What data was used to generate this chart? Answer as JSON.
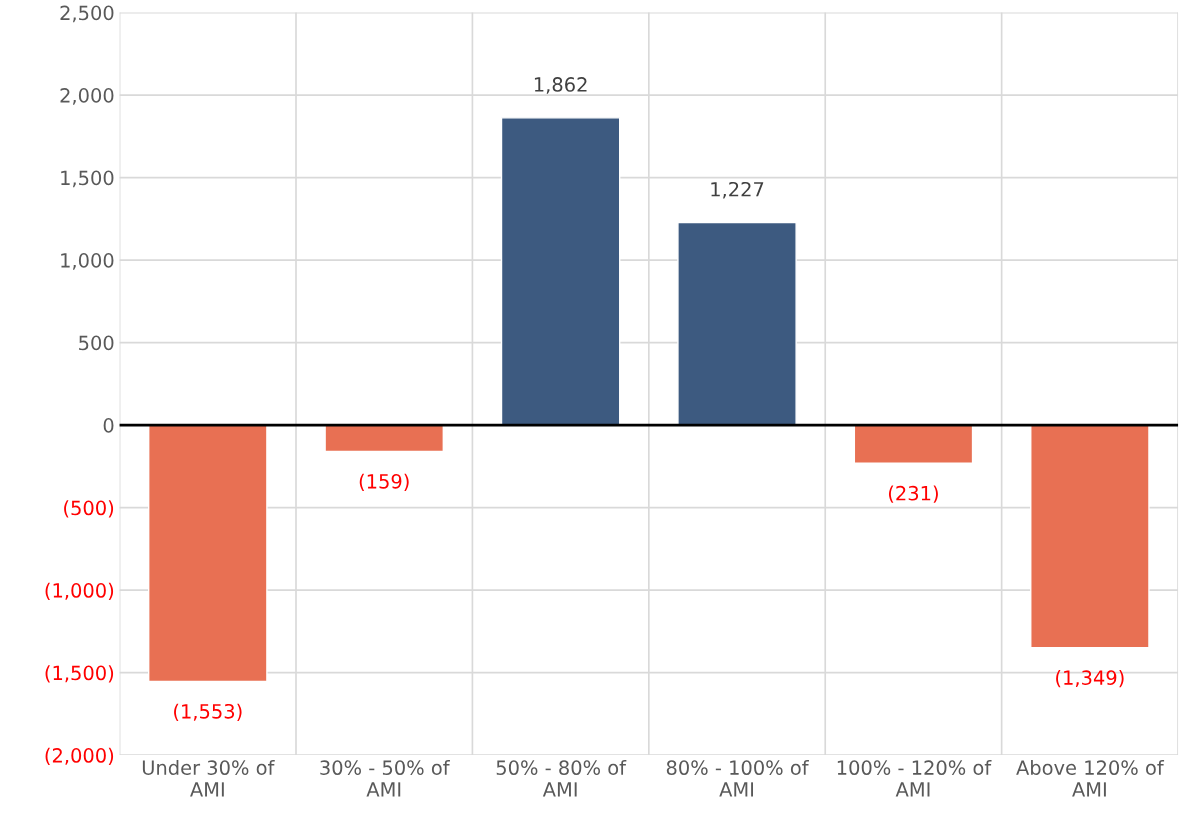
{
  "chart_data": {
    "type": "bar",
    "categories": [
      "Under 30% of AMI",
      "30% - 50% of AMI",
      "50% - 80% of AMI",
      "80% - 100% of AMI",
      "100% - 120% of AMI",
      "Above 120% of AMI"
    ],
    "values": [
      -1553,
      -159,
      1862,
      1227,
      -231,
      -1349
    ],
    "colors": [
      "#e87053",
      "#e87053",
      "#3d5a80",
      "#3d5a80",
      "#e87053",
      "#e87053"
    ],
    "value_labels": [
      "(1,553)",
      "(159)",
      "1,862",
      "1,227",
      "(231)",
      "(1,349)"
    ],
    "ylim": [
      -2000,
      2500
    ],
    "yticks": [
      {
        "value": -2000,
        "label": "(2,000)"
      },
      {
        "value": -1500,
        "label": "(1,500)"
      },
      {
        "value": -1000,
        "label": "(1,000)"
      },
      {
        "value": -500,
        "label": "(500)"
      },
      0,
      500,
      {
        "value": 1000,
        "label": "1,000"
      },
      {
        "value": 1500,
        "label": "1,500"
      },
      {
        "value": 2000,
        "label": "2,000"
      },
      {
        "value": 2500,
        "label": "2,500"
      }
    ],
    "grid": true,
    "legend": false
  }
}
